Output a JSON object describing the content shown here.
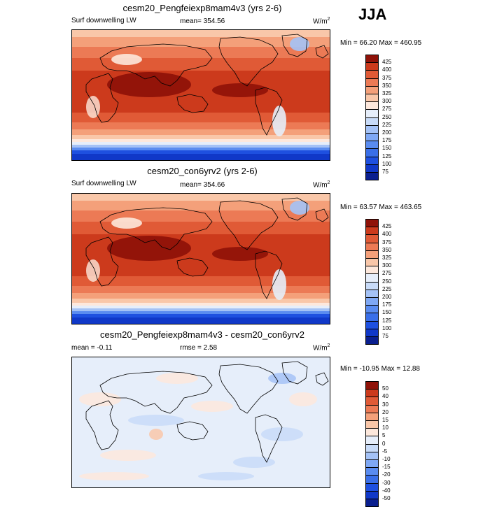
{
  "season_label": "JJA",
  "panels": [
    {
      "title": "cesm20_Pengfeiexp8mam4v3 (yrs 2-6)",
      "left_label": "Surf downwelling LW",
      "center_label": "mean= 354.56",
      "units": "W/m",
      "units_exp": "2",
      "min_label": "Min =",
      "min_value": "66.20",
      "max_label": "Max =",
      "max_value": "460.95"
    },
    {
      "title": "cesm20_con6yrv2 (yrs 2-6)",
      "left_label": "Surf downwelling LW",
      "center_label": "mean= 354.66",
      "units": "W/m",
      "units_exp": "2",
      "min_label": "Min =",
      "min_value": "63.57",
      "max_label": "Max =",
      "max_value": "463.65"
    },
    {
      "title": "cesm20_Pengfeiexp8mam4v3 - cesm20_con6yrv2",
      "left_label": "mean =  -0.11",
      "center_label": "rmse =   2.58",
      "units": "W/m",
      "units_exp": "2",
      "min_label": "Min =",
      "min_value": "-10.95",
      "max_label": "Max =",
      "max_value": "12.88"
    }
  ],
  "chart_data": [
    {
      "type": "heatmap",
      "title": "cesm20_Pengfeiexp8mam4v3 (yrs 2-6)",
      "variable": "Surf downwelling LW",
      "mean": 354.56,
      "min": 66.2,
      "max": 460.95,
      "units": "W/m2",
      "levels": [
        75,
        100,
        125,
        150,
        175,
        200,
        225,
        250,
        275,
        300,
        325,
        350,
        375,
        400,
        425
      ],
      "colors": [
        "#0a1f8f",
        "#1038c8",
        "#1e50e0",
        "#3a6fe8",
        "#5a8cf0",
        "#7fa8f4",
        "#a4c2f6",
        "#c8dbf8",
        "#e6eefa",
        "#fde8dc",
        "#f9c7a9",
        "#f4a07a",
        "#ec7a55",
        "#e05a36",
        "#cc3a1c",
        "#8f1208"
      ]
    },
    {
      "type": "heatmap",
      "title": "cesm20_con6yrv2 (yrs 2-6)",
      "variable": "Surf downwelling LW",
      "mean": 354.66,
      "min": 63.57,
      "max": 463.65,
      "units": "W/m2",
      "levels": [
        75,
        100,
        125,
        150,
        175,
        200,
        225,
        250,
        275,
        300,
        325,
        350,
        375,
        400,
        425
      ],
      "colors": [
        "#0a1f8f",
        "#1038c8",
        "#1e50e0",
        "#3a6fe8",
        "#5a8cf0",
        "#7fa8f4",
        "#a4c2f6",
        "#c8dbf8",
        "#e6eefa",
        "#fde8dc",
        "#f9c7a9",
        "#f4a07a",
        "#ec7a55",
        "#e05a36",
        "#cc3a1c",
        "#8f1208"
      ]
    },
    {
      "type": "heatmap",
      "title": "cesm20_Pengfeiexp8mam4v3 - cesm20_con6yrv2",
      "mean": -0.11,
      "rmse": 2.58,
      "min": -10.95,
      "max": 12.88,
      "units": "W/m2",
      "levels": [
        -50,
        -40,
        -30,
        -20,
        -15,
        -10,
        -5,
        0,
        5,
        10,
        15,
        20,
        30,
        40,
        50
      ],
      "colors": [
        "#0a1f8f",
        "#1038c8",
        "#1e50e0",
        "#3a6fe8",
        "#5a8cf0",
        "#7fa8f4",
        "#a4c2f6",
        "#c8dbf8",
        "#e6eefa",
        "#fde8dc",
        "#f9c7a9",
        "#f4a07a",
        "#ec7a55",
        "#e05a36",
        "#cc3a1c",
        "#8f1208"
      ]
    }
  ]
}
